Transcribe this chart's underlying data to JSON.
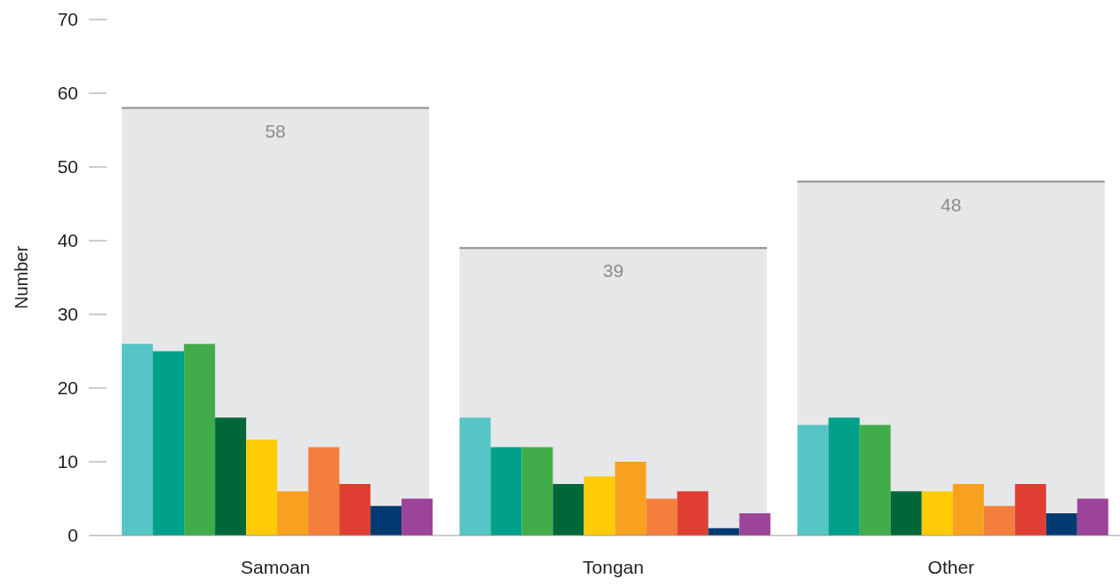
{
  "chart_data": {
    "type": "bar",
    "ylabel": "Number",
    "categories": [
      "Samoan",
      "Tongan",
      "Other"
    ],
    "ylim": [
      0,
      70
    ],
    "yticks": [
      0,
      10,
      20,
      30,
      40,
      50,
      60,
      70
    ],
    "series": [
      {
        "type": "bar",
        "color": "#e6e7e9",
        "values": [
          58,
          39,
          48
        ],
        "value_labels": [
          "58",
          "39",
          "48"
        ]
      },
      {
        "color": "#56c5c6",
        "values": [
          26,
          16,
          15
        ]
      },
      {
        "color": "#00a08a",
        "values": [
          25,
          12,
          16
        ]
      },
      {
        "color": "#41ad4a",
        "values": [
          26,
          12,
          15
        ]
      },
      {
        "color": "#006838",
        "values": [
          16,
          7,
          6
        ]
      },
      {
        "color": "#ffcb05",
        "values": [
          13,
          8,
          6
        ]
      },
      {
        "color": "#f8a01f",
        "values": [
          6,
          10,
          7
        ]
      },
      {
        "color": "#f47f3c",
        "values": [
          12,
          5,
          4
        ]
      },
      {
        "color": "#e03e33",
        "values": [
          7,
          6,
          7
        ]
      },
      {
        "color": "#003a70",
        "values": [
          4,
          1,
          3
        ]
      },
      {
        "color": "#9c4499",
        "values": [
          5,
          3,
          5
        ]
      }
    ]
  }
}
